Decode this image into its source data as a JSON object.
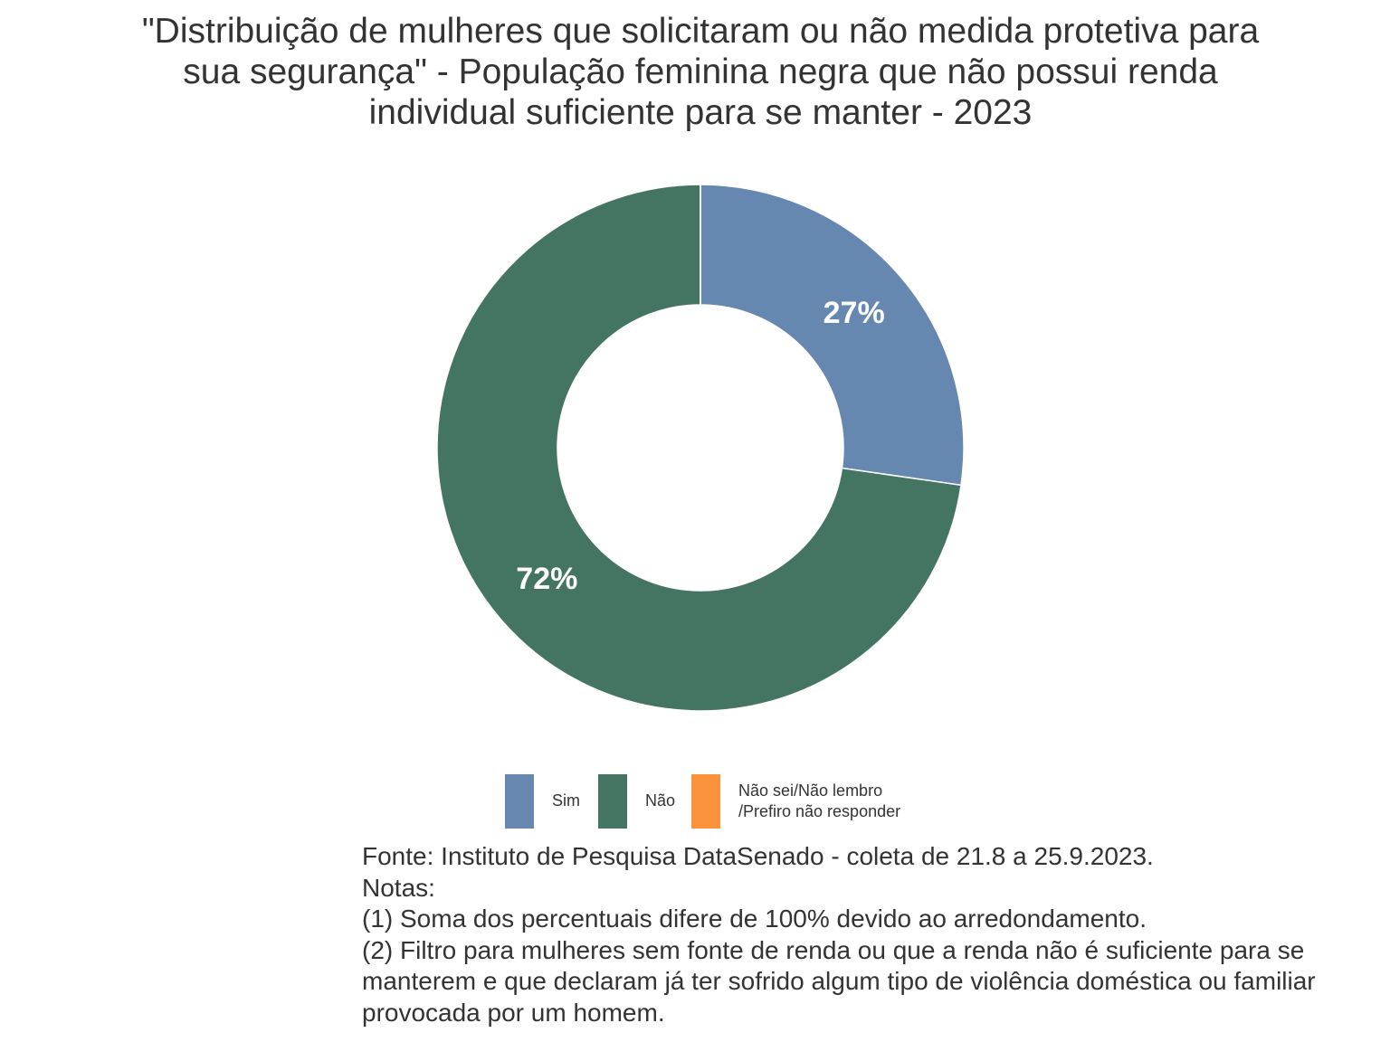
{
  "chart_data": {
    "type": "donut",
    "title": "\"Distribuição de mulheres que solicitaram ou não medida protetiva para sua segurança\" - População feminina negra que não possui renda individual suficiente para se manter - 2023",
    "categories": [
      "Sim",
      "Não",
      "Não sei/Não lembro /Prefiro não responder"
    ],
    "values": [
      27,
      72,
      0
    ],
    "value_labels": [
      "27%",
      "72%",
      null
    ],
    "colors": [
      "#6688b0",
      "#447563",
      "#fb923c"
    ],
    "source": "Fonte: Instituto de Pesquisa DataSenado - coleta de 21.8 a 25.9.2023.",
    "notes_title": "Notas:",
    "notes": [
      "(1) Soma dos percentuais difere de 100% devido ao arredondamento.",
      "(2) Filtro para mulheres sem fonte de renda ou que a renda não é suficiente para se manterem e que declaram já ter sofrido algum tipo de violência doméstica ou familiar provocada por um homem."
    ]
  }
}
